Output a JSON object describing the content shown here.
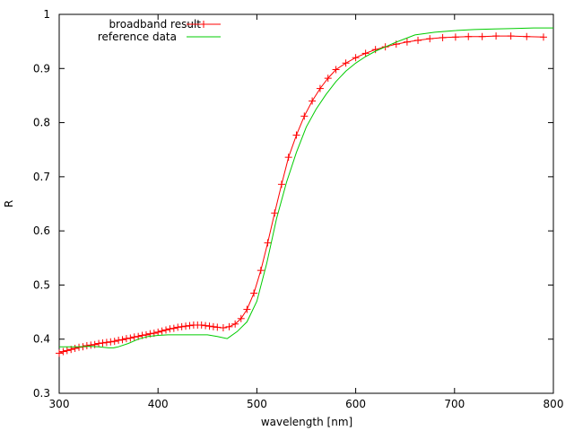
{
  "chart_data": {
    "type": "line",
    "xlabel": "wavelength [nm]",
    "ylabel": "R",
    "xlim": [
      300,
      800
    ],
    "ylim": [
      0.3,
      1.0
    ],
    "x_ticks": [
      "300",
      "400",
      "500",
      "600",
      "700",
      "800"
    ],
    "y_ticks": [
      "0.3",
      "0.4",
      "0.5",
      "0.6",
      "0.7",
      "0.8",
      "0.9",
      "1"
    ],
    "x_tick_values": [
      300,
      400,
      500,
      600,
      700,
      800
    ],
    "y_tick_values": [
      0.3,
      0.4,
      0.5,
      0.6,
      0.7,
      0.8,
      0.9,
      1.0
    ],
    "legend_position": "top-left",
    "series": [
      {
        "name": "broadband result",
        "color": "#ff0000",
        "marker": "plus",
        "x": [
          300,
          304,
          308,
          312,
          316,
          320,
          324,
          328,
          332,
          336,
          340,
          344,
          348,
          352,
          356,
          360,
          364,
          368,
          372,
          376,
          380,
          384,
          388,
          392,
          396,
          400,
          404,
          408,
          412,
          416,
          420,
          424,
          428,
          432,
          436,
          440,
          444,
          448,
          452,
          456,
          460,
          466,
          472,
          478,
          484,
          490,
          497,
          504,
          511,
          518,
          525,
          532,
          540,
          548,
          556,
          564,
          572,
          580,
          590,
          600,
          610,
          620,
          630,
          641,
          652,
          663,
          675,
          688,
          701,
          714,
          728,
          742,
          757,
          773,
          790
        ],
        "y": [
          0.374,
          0.377,
          0.379,
          0.381,
          0.383,
          0.385,
          0.386,
          0.388,
          0.389,
          0.39,
          0.392,
          0.393,
          0.394,
          0.395,
          0.396,
          0.398,
          0.399,
          0.401,
          0.402,
          0.404,
          0.405,
          0.407,
          0.408,
          0.41,
          0.411,
          0.413,
          0.415,
          0.417,
          0.419,
          0.42,
          0.422,
          0.423,
          0.424,
          0.425,
          0.426,
          0.426,
          0.426,
          0.425,
          0.424,
          0.423,
          0.422,
          0.421,
          0.423,
          0.428,
          0.438,
          0.455,
          0.485,
          0.527,
          0.578,
          0.633,
          0.686,
          0.736,
          0.777,
          0.812,
          0.84,
          0.863,
          0.882,
          0.898,
          0.91,
          0.92,
          0.928,
          0.935,
          0.94,
          0.945,
          0.949,
          0.952,
          0.955,
          0.957,
          0.958,
          0.959,
          0.959,
          0.96,
          0.96,
          0.959,
          0.958
        ]
      },
      {
        "name": "reference data",
        "color": "#00cc00",
        "marker": "none",
        "x": [
          300,
          310,
          320,
          330,
          340,
          350,
          355,
          360,
          370,
          380,
          390,
          400,
          410,
          420,
          430,
          440,
          450,
          460,
          470,
          480,
          490,
          500,
          510,
          520,
          530,
          540,
          550,
          560,
          570,
          580,
          590,
          600,
          610,
          620,
          630,
          640,
          650,
          660,
          680,
          700,
          720,
          740,
          760,
          780,
          800
        ],
        "y": [
          0.386,
          0.386,
          0.386,
          0.387,
          0.386,
          0.384,
          0.384,
          0.386,
          0.392,
          0.4,
          0.405,
          0.407,
          0.408,
          0.408,
          0.408,
          0.408,
          0.408,
          0.405,
          0.401,
          0.414,
          0.432,
          0.47,
          0.54,
          0.623,
          0.69,
          0.745,
          0.792,
          0.825,
          0.852,
          0.876,
          0.895,
          0.91,
          0.922,
          0.932,
          0.94,
          0.948,
          0.955,
          0.962,
          0.967,
          0.97,
          0.972,
          0.973,
          0.974,
          0.975,
          0.975
        ]
      }
    ]
  }
}
